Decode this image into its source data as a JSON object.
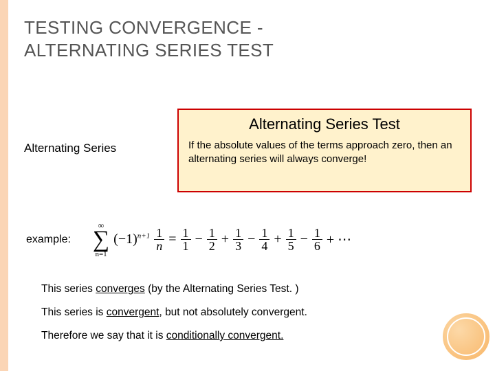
{
  "title_line1": "TESTING CONVERGENCE -",
  "title_line2": "ALTERNATING SERIES TEST",
  "subheading": "Alternating Series",
  "box": {
    "title": "Alternating Series Test",
    "body": "If the absolute values of the terms approach zero, then an alternating series will always converge!"
  },
  "example": {
    "label": "example:",
    "sum_top": "∞",
    "sum_bottom": "n=1",
    "neg1": "(−1)",
    "exponent": "n+1",
    "one": "1",
    "n": "n",
    "eq": "=",
    "t1n": "1",
    "t1d": "1",
    "t2n": "1",
    "t2d": "2",
    "t3n": "1",
    "t3d": "3",
    "t4n": "1",
    "t4d": "4",
    "t5n": "1",
    "t5d": "5",
    "t6n": "1",
    "t6d": "6",
    "minus": "−",
    "plus": "+",
    "dots": "+ ⋯"
  },
  "statements": {
    "s1a": "This series ",
    "s1u": "converges",
    "s1b": " (by the Alternating Series Test. )",
    "s2a": "This series is ",
    "s2u": "convergent",
    "s2b": ", but not absolutely convergent.",
    "s3a": "Therefore we say that it is ",
    "s3u": "conditionally convergent.",
    "s3b": ""
  },
  "colors": {
    "left_bar": "#fbd5b5",
    "box_bg": "#fff2cc",
    "box_border": "#cc0000",
    "title_color": "#555555",
    "circle_fill": "#f8b566"
  }
}
